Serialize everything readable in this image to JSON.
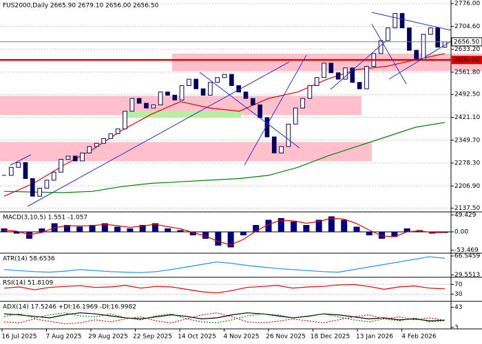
{
  "chart_data": [
    {
      "type": "candlestick",
      "title": "FUS2000,Daily 2665.90 2679.10 2656.00 2656.50",
      "ylim": [
        2126,
        2787
      ],
      "yticks": [
        {
          "value": 2776,
          "label": "2776.00"
        },
        {
          "value": 2704.6,
          "label": "2704.60"
        },
        {
          "value": 2633.2,
          "label": "2633.20"
        },
        {
          "value": 2561.8,
          "label": "2561.80"
        },
        {
          "value": 2492.5,
          "label": "2492.50"
        },
        {
          "value": 2421.1,
          "label": "2421.10"
        },
        {
          "value": 2349.7,
          "label": "2349.70"
        },
        {
          "value": 2278.3,
          "label": "2278.30"
        },
        {
          "value": 2206.9,
          "label": "2206.90"
        },
        {
          "value": 2137.5,
          "label": "2137.50"
        }
      ],
      "levels": [
        {
          "value": 2656.5,
          "label": "2656.50",
          "color": "#808080"
        },
        {
          "value": 2600,
          "label": "2600.00",
          "color": "#e00000"
        }
      ],
      "zones": [
        {
          "low": 2565,
          "high": 2620,
          "color": "#ffc0cb"
        },
        {
          "low": 2428,
          "high": 2488,
          "color": "#ffc0cb"
        },
        {
          "low": 2284,
          "high": 2344,
          "color": "#ffc0cb"
        },
        {
          "low": 2420,
          "high": 2440,
          "color": "#b4f0a0"
        }
      ],
      "close": [
        2240,
        2265,
        2280,
        2230,
        2175,
        2200,
        2225,
        2250,
        2290,
        2300,
        2285,
        2310,
        2330,
        2340,
        2355,
        2370,
        2385,
        2440,
        2480,
        2465,
        2450,
        2460,
        2500,
        2490,
        2475,
        2520,
        2540,
        2510,
        2490,
        2530,
        2545,
        2555,
        2520,
        2500,
        2480,
        2460,
        2420,
        2360,
        2310,
        2330,
        2400,
        2450,
        2480,
        2520,
        2545,
        2590,
        2560,
        2540,
        2575,
        2530,
        2510,
        2580,
        2620,
        2660,
        2700,
        2745,
        2700,
        2630,
        2600,
        2680,
        2700,
        2640,
        2656.5
      ],
      "series": [
        {
          "color": "#e00000",
          "values": [
            2175,
            2215,
            2270,
            2320,
            2380,
            2430,
            2470,
            2450,
            2440,
            2480,
            2500,
            2540,
            2570,
            2580,
            2600,
            2620
          ]
        },
        {
          "color": "#008000",
          "values": [
            2190,
            2188,
            2186,
            2190,
            2205,
            2215,
            2220,
            2225,
            2230,
            2240,
            2265,
            2300,
            2330,
            2360,
            2390,
            2405
          ]
        }
      ],
      "x_labels": [
        "16 Jul 2025",
        "7 Aug 2025",
        "29 Aug 2025",
        "22 Sep 2025",
        "14 Oct 2025",
        "4 Nov 2025",
        "26 Nov 2025",
        "18 Dec 2025",
        "13 Jan 2026",
        "4 Feb 2026"
      ]
    },
    {
      "type": "macd",
      "title": "MACD(3,10,5) 1.551 -1.057",
      "ylim": [
        -62,
        58
      ],
      "yticks": [
        49.429,
        {
          "value": 0,
          "label": "0.00"
        },
        -53.469
      ],
      "values": [
        10,
        -5,
        -20,
        10,
        25,
        20,
        15,
        20,
        25,
        15,
        10,
        20,
        25,
        10,
        5,
        -10,
        -20,
        -40,
        -45,
        -10,
        20,
        35,
        40,
        30,
        20,
        35,
        45,
        35,
        15,
        -10,
        -20,
        -15,
        10,
        5,
        -5,
        -3
      ],
      "color": "#000080",
      "series": [
        {
          "color": "#e00000",
          "values": [
            5,
            2,
            -8,
            -2,
            12,
            18,
            17,
            18,
            22,
            18,
            13,
            17,
            22,
            15,
            9,
            -2,
            -12,
            -28,
            -38,
            -22,
            2,
            22,
            34,
            32,
            25,
            30,
            40,
            37,
            24,
            5,
            -12,
            -14,
            0,
            3,
            -2,
            -2
          ]
        }
      ]
    },
    {
      "type": "line",
      "title": "ATR(14) 58.6536",
      "ylim": [
        25,
        72
      ],
      "yticks": [
        66.5459,
        29.5513
      ],
      "series": [
        {
          "color": "#1e90ff",
          "values": [
            40,
            38,
            36,
            35,
            37,
            40,
            38,
            36,
            35,
            34,
            36,
            40,
            45,
            50,
            55,
            52,
            48,
            45,
            42,
            40,
            38,
            36,
            35,
            40,
            45,
            50,
            55,
            60,
            65,
            62
          ]
        }
      ]
    },
    {
      "type": "line",
      "title": "RSI(14) 51.8109",
      "ylim": [
        0,
        100
      ],
      "yticks": [
        70,
        30
      ],
      "series": [
        {
          "color": "#e00000",
          "values": [
            55,
            60,
            48,
            58,
            62,
            65,
            58,
            60,
            66,
            55,
            62,
            60,
            50,
            40,
            35,
            45,
            58,
            62,
            66,
            55,
            60,
            62,
            68,
            70,
            62,
            50,
            60,
            64,
            55,
            52
          ]
        }
      ]
    },
    {
      "type": "line",
      "title": "ADX(14) 17.5246 +DI:16.1969 -DI:16.9982",
      "ylim": [
        0,
        55
      ],
      "yticks": [
        43,
        3
      ],
      "series": [
        {
          "color": "#000000",
          "values": [
            30,
            28,
            25,
            22,
            28,
            32,
            30,
            26,
            22,
            20,
            24,
            28,
            25,
            20,
            22,
            28,
            32,
            30,
            26,
            22,
            25,
            30,
            28,
            24,
            20,
            22,
            18,
            20,
            16,
            17.5
          ]
        },
        {
          "color": "#008000",
          "values": [
            25,
            30,
            22,
            28,
            32,
            26,
            24,
            30,
            22,
            18,
            26,
            30,
            20,
            14,
            12,
            18,
            26,
            30,
            28,
            22,
            26,
            30,
            24,
            18,
            14,
            20,
            16,
            22,
            14,
            16.2
          ]
        },
        {
          "color": "#e00000",
          "values": [
            14,
            12,
            20,
            15,
            10,
            12,
            18,
            14,
            20,
            24,
            16,
            12,
            20,
            28,
            32,
            24,
            14,
            12,
            15,
            20,
            16,
            12,
            18,
            24,
            28,
            20,
            24,
            18,
            22,
            17
          ]
        }
      ]
    }
  ]
}
